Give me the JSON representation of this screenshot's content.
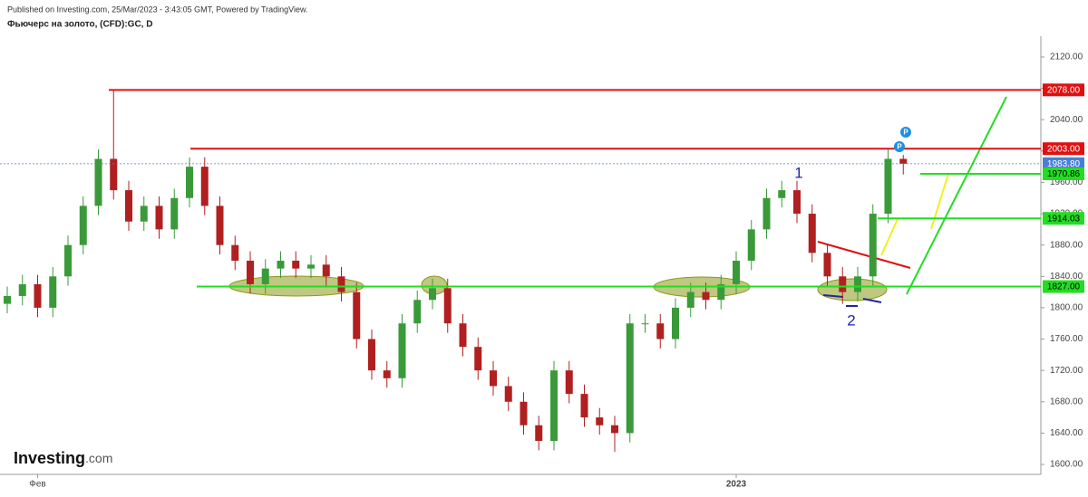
{
  "chart_data": {
    "type": "candlestick",
    "published": "Published on Investing.com, 25/Mar/2023 - 3:43:05 GMT, Powered by TradingView.",
    "title": "Фьючерс на золото, (CFD):GC, D",
    "logo": "Investing",
    "logo_suffix": ".com",
    "categories": [
      null,
      null,
      "Фев",
      null,
      null,
      null,
      null,
      null,
      null,
      null,
      null,
      null,
      null,
      null,
      null,
      null,
      null,
      null,
      null,
      null,
      null,
      null,
      null,
      null,
      null,
      null,
      null,
      null,
      null,
      null,
      null,
      null,
      null,
      null,
      null,
      null,
      null,
      null,
      null,
      null,
      null,
      null,
      null,
      null,
      null,
      null,
      null,
      null,
      "2023",
      null,
      null,
      null,
      null,
      null,
      null,
      null,
      null,
      null,
      null,
      null
    ],
    "open": [
      1805,
      1815,
      1830,
      1800,
      1840,
      1880,
      1930,
      1990,
      1950,
      1910,
      1930,
      1900,
      1940,
      1980,
      1930,
      1880,
      1860,
      1830,
      1850,
      1860,
      1850,
      1855,
      1840,
      1820,
      1760,
      1720,
      1710,
      1780,
      1810,
      1825,
      1780,
      1750,
      1720,
      1700,
      1680,
      1650,
      1630,
      1720,
      1690,
      1660,
      1650,
      1640,
      1780,
      1780,
      1760,
      1800,
      1820,
      1810,
      1830,
      1860,
      1900,
      1940,
      1950,
      1920,
      1870,
      1840,
      1820,
      1840,
      1920,
      1990
    ],
    "high": [
      1827,
      1842,
      1842,
      1852,
      1892,
      1942,
      2002,
      2078,
      1962,
      1942,
      1942,
      1952,
      1992,
      1992,
      1942,
      1892,
      1872,
      1862,
      1872,
      1872,
      1867,
      1867,
      1852,
      1832,
      1772,
      1732,
      1792,
      1822,
      1837,
      1837,
      1792,
      1762,
      1732,
      1712,
      1692,
      1662,
      1732,
      1732,
      1702,
      1672,
      1662,
      1792,
      1792,
      1792,
      1812,
      1832,
      1832,
      1842,
      1872,
      1912,
      1952,
      1962,
      1962,
      1932,
      1882,
      1852,
      1852,
      1932,
      2003,
      1995
    ],
    "low": [
      1793,
      1803,
      1788,
      1788,
      1828,
      1868,
      1918,
      1938,
      1898,
      1898,
      1888,
      1888,
      1928,
      1918,
      1868,
      1848,
      1818,
      1818,
      1838,
      1838,
      1838,
      1828,
      1808,
      1748,
      1708,
      1698,
      1698,
      1768,
      1798,
      1768,
      1738,
      1708,
      1688,
      1668,
      1638,
      1618,
      1618,
      1678,
      1648,
      1638,
      1616,
      1628,
      1768,
      1748,
      1748,
      1788,
      1798,
      1798,
      1818,
      1848,
      1888,
      1928,
      1908,
      1858,
      1828,
      1805,
      1808,
      1828,
      1908,
      1970
    ],
    "close": [
      1815,
      1830,
      1800,
      1840,
      1880,
      1930,
      1990,
      1950,
      1910,
      1930,
      1900,
      1940,
      1980,
      1930,
      1880,
      1860,
      1830,
      1850,
      1860,
      1850,
      1855,
      1840,
      1820,
      1760,
      1720,
      1710,
      1780,
      1810,
      1825,
      1780,
      1750,
      1720,
      1700,
      1680,
      1650,
      1630,
      1720,
      1690,
      1660,
      1650,
      1640,
      1780,
      1780,
      1760,
      1800,
      1820,
      1810,
      1830,
      1860,
      1900,
      1940,
      1950,
      1920,
      1870,
      1840,
      1820,
      1840,
      1920,
      1990,
      1983.8
    ],
    "up_color": "#3a9a3a",
    "down_color": "#b02020",
    "ylim": [
      1585,
      2150
    ],
    "yticks": [
      {
        "value": 1600,
        "label": "1600.00"
      },
      {
        "value": 1640,
        "label": "1640.00"
      },
      {
        "value": 1680,
        "label": "1680.00"
      },
      {
        "value": 1720,
        "label": "1720.00"
      },
      {
        "value": 1760,
        "label": "1760.00"
      },
      {
        "value": 1800,
        "label": "1800.00"
      },
      {
        "value": 1840,
        "label": "1840.00"
      },
      {
        "value": 1880,
        "label": "1880.00"
      },
      {
        "value": 1920,
        "label": "1920.00"
      },
      {
        "value": 1960,
        "label": "1960.00"
      },
      {
        "value": 2000,
        "label": "2000.00"
      },
      {
        "value": 2040,
        "label": "2040.00"
      },
      {
        "value": 2080,
        "label": "2080.00"
      },
      {
        "value": 2120,
        "label": "2120.00"
      }
    ],
    "levels": [
      {
        "value": 2078,
        "label": "2078.00",
        "color": "#e01010"
      },
      {
        "value": 2003,
        "label": "2003.00",
        "color": "#e01010"
      },
      {
        "value": 1983.8,
        "label": "1983.80",
        "color": "#4a7fd4"
      },
      {
        "value": 1970.86,
        "label": "1970.86",
        "color": "#22dd22"
      },
      {
        "value": 1914.03,
        "label": "1914.03",
        "color": "#22dd22"
      },
      {
        "value": 1827,
        "label": "1827.00",
        "color": "#22dd22"
      }
    ],
    "annotations": [
      "1",
      "2"
    ]
  }
}
